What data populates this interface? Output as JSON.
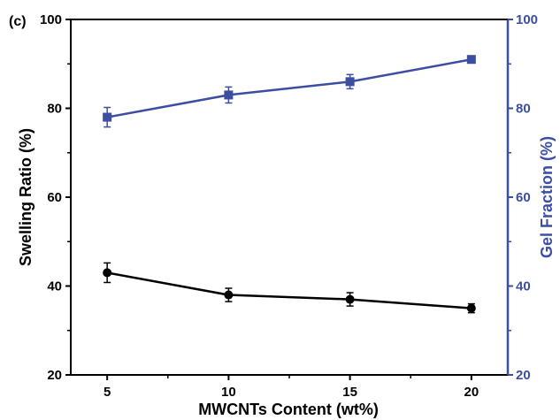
{
  "chart_data": {
    "type": "line",
    "panel_label": "(c)",
    "xlabel": "MWCNTs Content (wt%)",
    "ylabel_left": "Swelling Ratio (%)",
    "ylabel_right": "Gel Fraction (%)",
    "x": [
      5,
      10,
      15,
      20
    ],
    "xticks": [
      "5",
      "10",
      "15",
      "20"
    ],
    "xlim": [
      3.5,
      21.5
    ],
    "ylim_left": [
      20,
      100
    ],
    "ylim_right": [
      20,
      100
    ],
    "yticks_left": [
      "20",
      "40",
      "60",
      "80",
      "100"
    ],
    "yticks_right": [
      "20",
      "40",
      "60",
      "80",
      "100"
    ],
    "grid": false,
    "series": [
      {
        "axis": "left",
        "marker": "circle",
        "color": "#000000",
        "values": [
          43,
          38,
          37,
          35
        ],
        "errors": [
          2.2,
          1.5,
          1.5,
          1.0
        ]
      },
      {
        "axis": "right",
        "marker": "square",
        "color": "#3b4ea2",
        "values": [
          78,
          83,
          86,
          91
        ],
        "errors": [
          2.2,
          1.8,
          1.6,
          0.8
        ]
      }
    ]
  }
}
